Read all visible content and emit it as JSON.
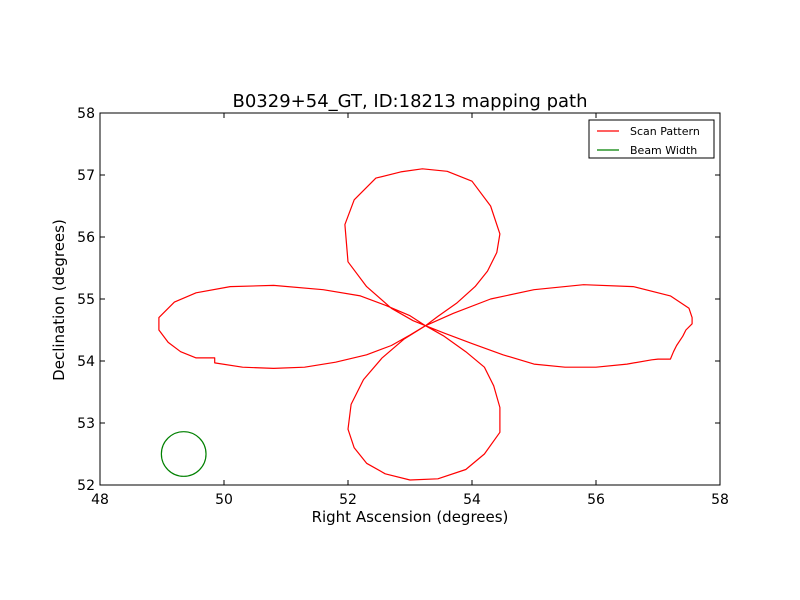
{
  "chart_data": {
    "type": "line",
    "title": "B0329+54_GT, ID:18213 mapping path",
    "xlabel": "Right Ascension (degrees)",
    "ylabel": "Declination (degrees)",
    "xlim": [
      48,
      58
    ],
    "ylim": [
      52,
      58
    ],
    "xticks": [
      "48",
      "50",
      "52",
      "54",
      "56",
      "58"
    ],
    "yticks": [
      "52",
      "53",
      "54",
      "55",
      "56",
      "57",
      "58"
    ],
    "grid": false,
    "legend_position": "upper-right",
    "series": [
      {
        "name": "Scan Pattern",
        "color": "#ff0000",
        "points": [
          [
            53.25,
            54.57
          ],
          [
            53.45,
            54.72
          ],
          [
            53.75,
            54.93
          ],
          [
            54.05,
            55.2
          ],
          [
            54.25,
            55.45
          ],
          [
            54.4,
            55.75
          ],
          [
            54.45,
            56.05
          ],
          [
            54.3,
            56.5
          ],
          [
            54.0,
            56.9
          ],
          [
            53.6,
            57.06
          ],
          [
            53.2,
            57.1
          ],
          [
            52.85,
            57.05
          ],
          [
            52.45,
            56.95
          ],
          [
            52.1,
            56.6
          ],
          [
            51.95,
            56.2
          ],
          [
            52.0,
            55.6
          ],
          [
            52.3,
            55.2
          ],
          [
            52.7,
            54.85
          ],
          [
            53.05,
            54.65
          ],
          [
            53.25,
            54.57
          ],
          [
            53.0,
            54.73
          ],
          [
            52.6,
            54.9
          ],
          [
            52.2,
            55.05
          ],
          [
            51.6,
            55.15
          ],
          [
            50.8,
            55.22
          ],
          [
            50.1,
            55.2
          ],
          [
            49.55,
            55.1
          ],
          [
            49.2,
            54.95
          ],
          [
            48.95,
            54.7
          ],
          [
            48.95,
            54.5
          ],
          [
            49.1,
            54.3
          ],
          [
            49.3,
            54.15
          ],
          [
            49.55,
            54.05
          ],
          [
            49.7,
            54.05
          ],
          [
            49.85,
            54.05
          ],
          [
            49.85,
            53.97
          ],
          [
            50.3,
            53.9
          ],
          [
            50.8,
            53.88
          ],
          [
            51.3,
            53.9
          ],
          [
            51.8,
            53.98
          ],
          [
            52.3,
            54.1
          ],
          [
            52.7,
            54.25
          ],
          [
            53.0,
            54.42
          ],
          [
            53.25,
            54.57
          ],
          [
            53.55,
            54.4
          ],
          [
            53.9,
            54.15
          ],
          [
            54.2,
            53.9
          ],
          [
            54.35,
            53.6
          ],
          [
            54.45,
            53.25
          ],
          [
            54.45,
            52.85
          ],
          [
            54.2,
            52.5
          ],
          [
            53.9,
            52.25
          ],
          [
            53.45,
            52.1
          ],
          [
            53.0,
            52.08
          ],
          [
            52.6,
            52.18
          ],
          [
            52.3,
            52.35
          ],
          [
            52.1,
            52.6
          ],
          [
            52.0,
            52.9
          ],
          [
            52.05,
            53.3
          ],
          [
            52.25,
            53.7
          ],
          [
            52.55,
            54.05
          ],
          [
            52.9,
            54.35
          ],
          [
            53.25,
            54.57
          ],
          [
            53.7,
            54.77
          ],
          [
            54.3,
            55.0
          ],
          [
            55.0,
            55.15
          ],
          [
            55.8,
            55.23
          ],
          [
            56.6,
            55.2
          ],
          [
            57.2,
            55.05
          ],
          [
            57.5,
            54.85
          ],
          [
            57.55,
            54.7
          ],
          [
            57.55,
            54.6
          ],
          [
            57.45,
            54.5
          ],
          [
            57.4,
            54.4
          ],
          [
            57.3,
            54.25
          ],
          [
            57.25,
            54.15
          ],
          [
            57.2,
            54.03
          ],
          [
            57.0,
            54.03
          ],
          [
            56.9,
            54.02
          ],
          [
            56.5,
            53.95
          ],
          [
            56.0,
            53.9
          ],
          [
            55.5,
            53.9
          ],
          [
            55.0,
            53.95
          ],
          [
            54.5,
            54.1
          ],
          [
            54.0,
            54.28
          ],
          [
            53.55,
            54.45
          ],
          [
            53.25,
            54.57
          ]
        ]
      },
      {
        "name": "Beam Width",
        "color": "#008000",
        "circle": {
          "center": [
            49.35,
            52.5
          ],
          "radius_deg": 0.36
        }
      }
    ]
  }
}
